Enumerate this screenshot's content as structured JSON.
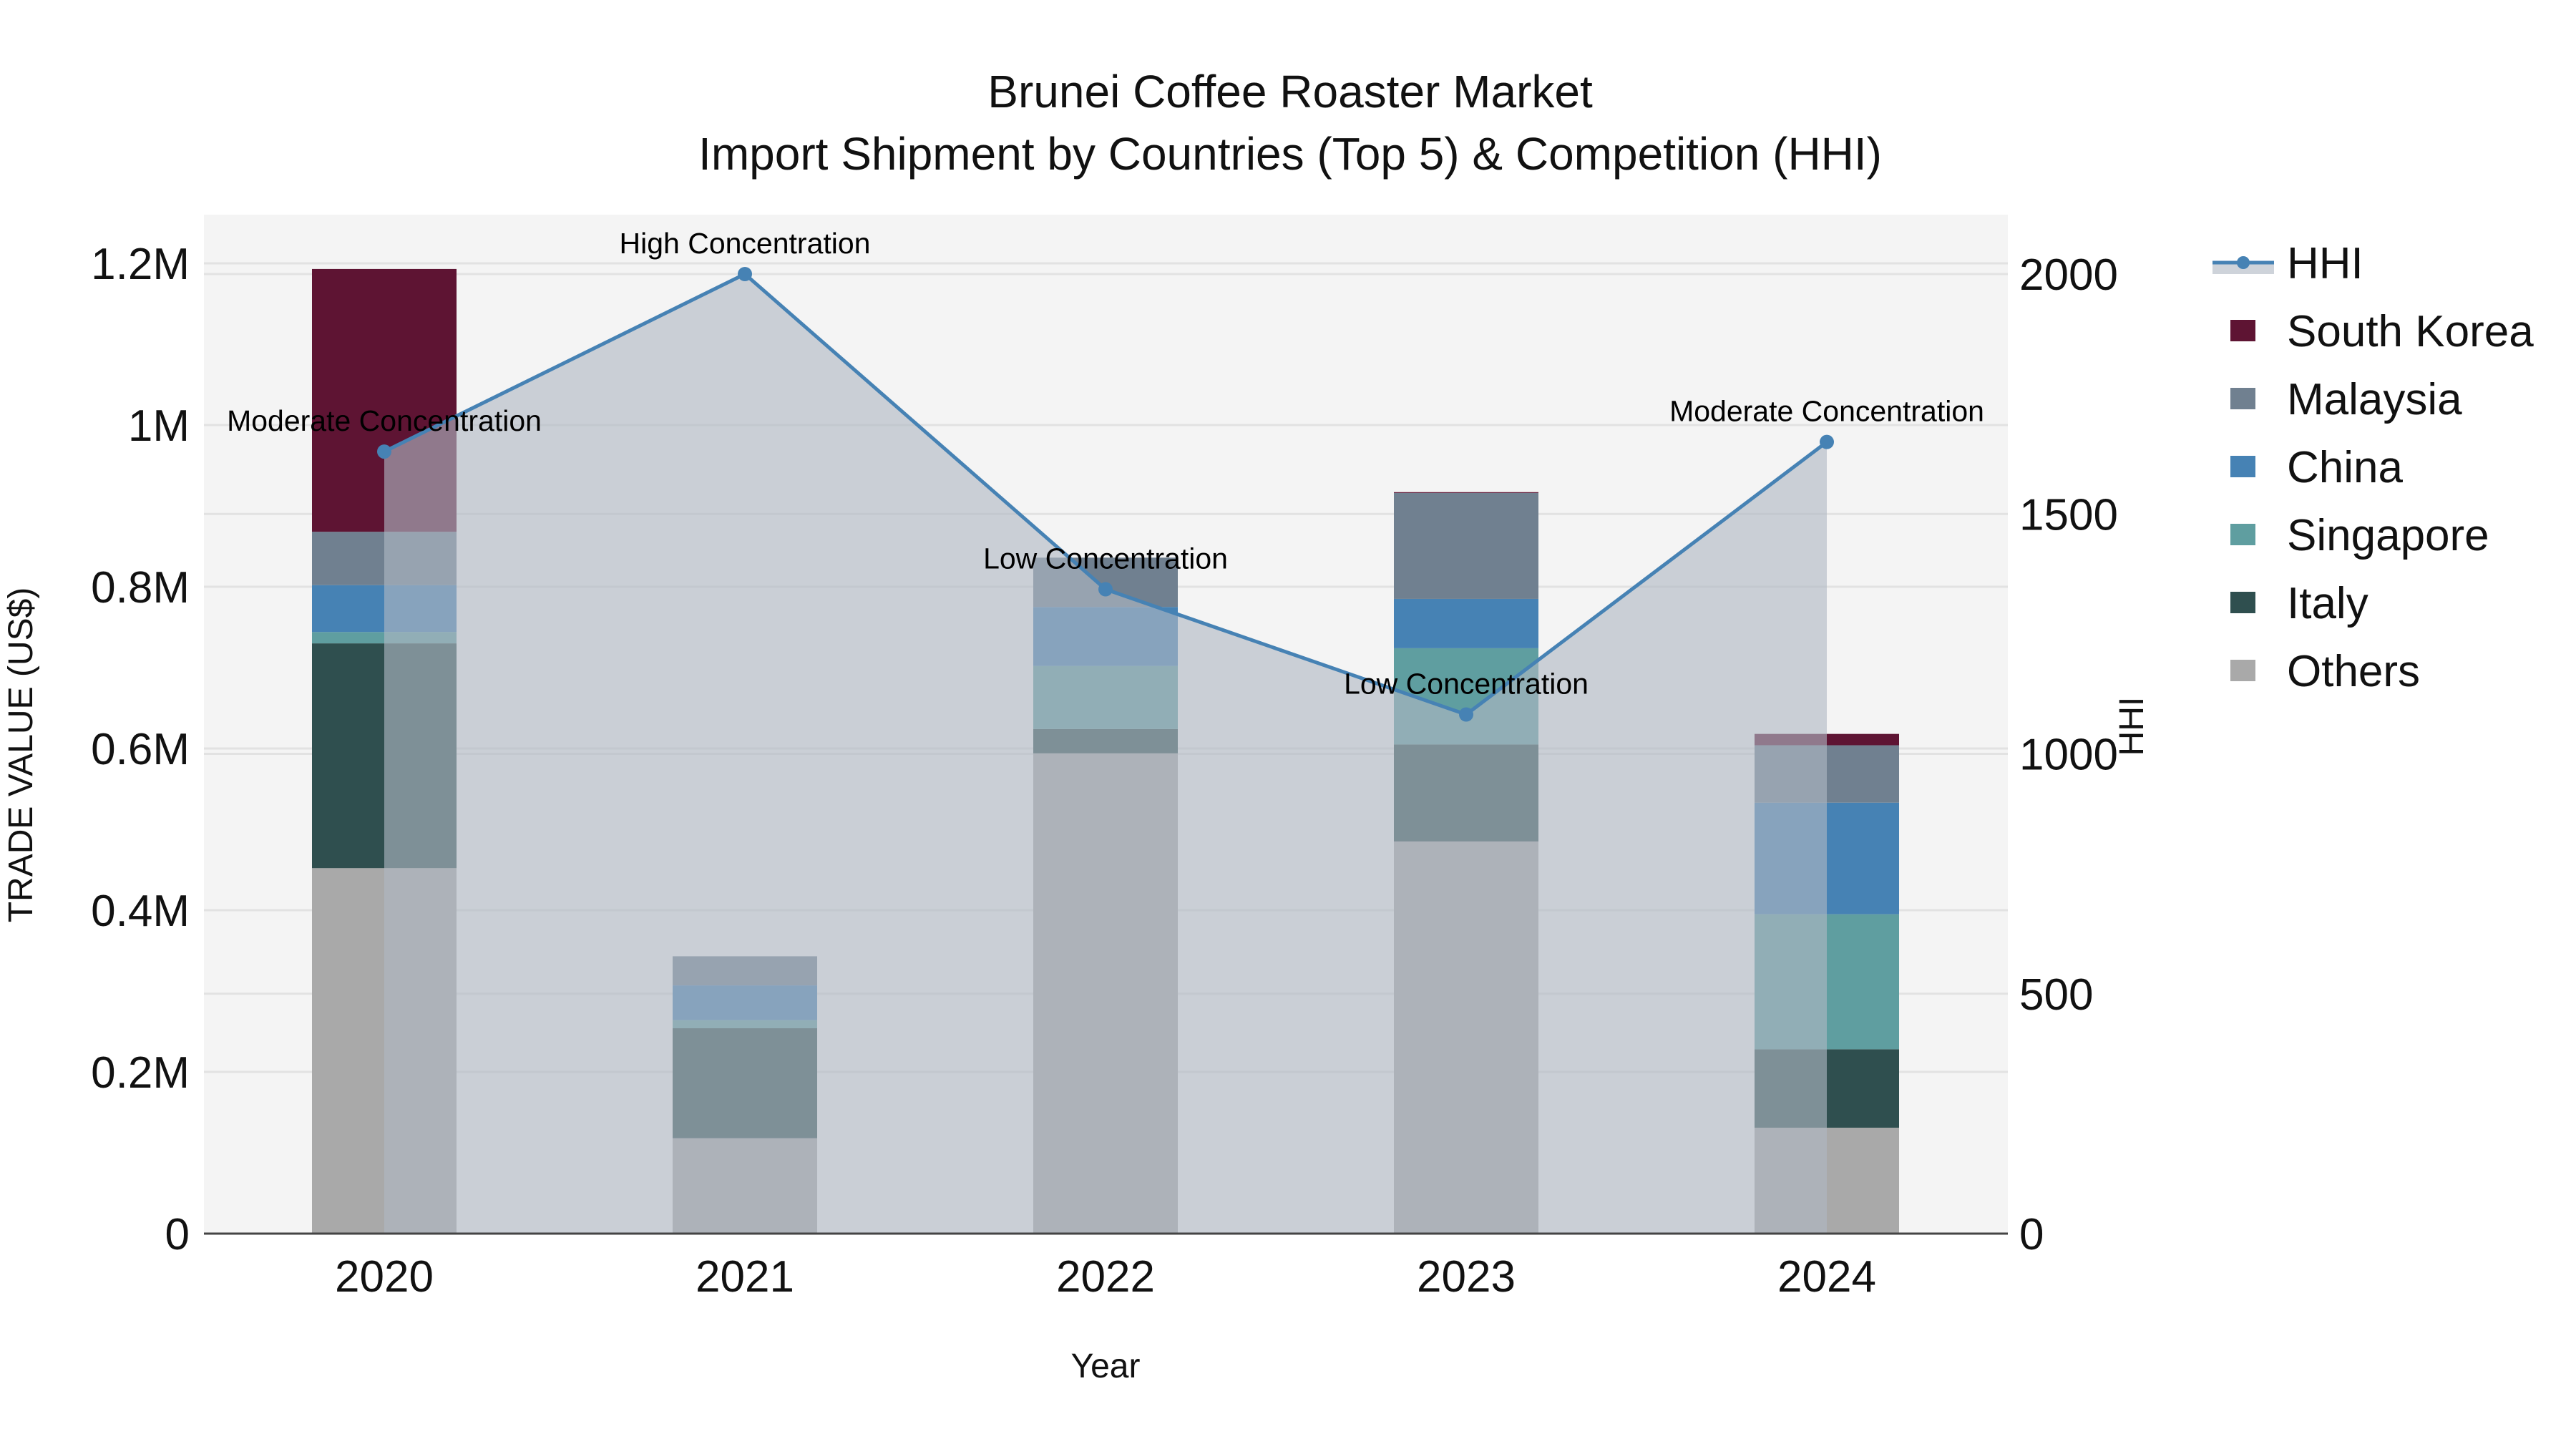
{
  "chart_data": {
    "type": "bar",
    "subtype": "stacked bar + line (dual axis)",
    "title": "Brunei Coffee Roaster Market",
    "subtitle": "Import Shipment by Countries (Top 5) & Competition (HHI)",
    "xlabel": "Year",
    "ylabel": "TRADE VALUE (US$)",
    "y2label": "HHI",
    "categories": [
      "2020",
      "2021",
      "2022",
      "2023",
      "2024"
    ],
    "ylim": [
      0,
      1260000
    ],
    "y_ticks": [
      0,
      200000,
      400000,
      600000,
      800000,
      1000000,
      1200000
    ],
    "y_tick_labels": [
      "0",
      "0.2M",
      "0.4M",
      "0.6M",
      "0.8M",
      "1M",
      "1.2M"
    ],
    "y2lim": [
      0,
      2120
    ],
    "y2_ticks": [
      0,
      500,
      1000,
      1500,
      2000
    ],
    "y2_tick_labels": [
      "0",
      "500",
      "1000",
      "1500",
      "2000"
    ],
    "grid": true,
    "legend_position": "right",
    "stack_order_bottom_to_top": [
      "Others",
      "Italy",
      "Singapore",
      "China",
      "Malaysia",
      "South Korea"
    ],
    "series": [
      {
        "name": "South Korea",
        "color": "#5e1433",
        "values": [
          325000,
          0,
          0,
          1000,
          14000
        ]
      },
      {
        "name": "Malaysia",
        "color": "#708090",
        "values": [
          66000,
          36000,
          61000,
          131000,
          71000
        ]
      },
      {
        "name": "China",
        "color": "#4682b4",
        "values": [
          58000,
          43000,
          73000,
          61000,
          138000
        ]
      },
      {
        "name": "Singapore",
        "color": "#5f9ea0",
        "values": [
          14000,
          10000,
          78000,
          119000,
          167000
        ]
      },
      {
        "name": "Italy",
        "color": "#2f4f4f",
        "values": [
          278000,
          136000,
          30000,
          120000,
          97000
        ]
      },
      {
        "name": "Others",
        "color": "#a9a9a9",
        "values": [
          452000,
          118000,
          594000,
          485000,
          131000
        ]
      }
    ],
    "line_series": {
      "name": "HHI",
      "axis": "y2",
      "color": "#4682b4",
      "fill_color": "rgba(176,184,196,0.62)",
      "values": [
        1630,
        2000,
        1343,
        1082,
        1650
      ],
      "annotations": [
        "Moderate Concentration",
        "High Concentration",
        "Low Concentration",
        "Low Concentration",
        "Moderate Concentration"
      ]
    }
  },
  "legend": {
    "items": [
      {
        "label": "HHI",
        "type": "line"
      },
      {
        "label": "South Korea",
        "type": "box"
      },
      {
        "label": "Malaysia",
        "type": "box"
      },
      {
        "label": "China",
        "type": "box"
      },
      {
        "label": "Singapore",
        "type": "box"
      },
      {
        "label": "Italy",
        "type": "box"
      },
      {
        "label": "Others",
        "type": "box"
      }
    ]
  },
  "colors": {
    "plot_background": "#f4f4f4",
    "page_background": "#ffffff"
  }
}
